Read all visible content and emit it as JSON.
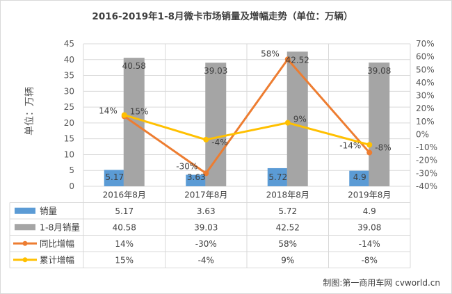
{
  "chart_data": {
    "type": "bar",
    "title": "2016-2019年1-8月微卡市场销量及增幅走势（单位：万辆）",
    "ylabel": "单位：万辆",
    "categories": [
      "2016年8月",
      "2017年8月",
      "2018年8月",
      "2019年8月"
    ],
    "ylim": [
      0,
      45
    ],
    "y_ticks": [
      "0",
      "5",
      "10",
      "15",
      "20",
      "25",
      "30",
      "35",
      "40",
      "45"
    ],
    "y2lim": [
      -40,
      70
    ],
    "y2_ticks": [
      "-40%",
      "-30%",
      "-20%",
      "-10%",
      "0%",
      "10%",
      "20%",
      "30%",
      "40%",
      "50%",
      "60%",
      "70%"
    ],
    "grid": true,
    "series": [
      {
        "name": "销量",
        "kind": "bar",
        "axis": "left",
        "color": "#5b9bd5",
        "values": [
          5.17,
          3.63,
          5.72,
          4.9
        ],
        "labels": [
          "5.17",
          "3.63",
          "5.72",
          "4.9"
        ]
      },
      {
        "name": "1-8月销量",
        "kind": "bar",
        "axis": "left",
        "color": "#a5a5a5",
        "values": [
          40.58,
          39.03,
          42.52,
          39.08
        ],
        "labels": [
          "40.58",
          "39.03",
          "42.52",
          "39.08"
        ]
      },
      {
        "name": "同比增幅",
        "kind": "line",
        "axis": "right",
        "color": "#ed7d31",
        "values": [
          14,
          -30,
          58,
          -14
        ],
        "labels": [
          "14%",
          "-30%",
          "58%",
          "-14%"
        ]
      },
      {
        "name": "累计增幅",
        "kind": "line",
        "axis": "right",
        "color": "#ffc000",
        "values": [
          15,
          -4,
          9,
          -8
        ],
        "labels": [
          "15%",
          "-4%",
          "9%",
          "-8%"
        ]
      }
    ],
    "table": {
      "rows": [
        [
          "5.17",
          "3.63",
          "5.72",
          "4.9"
        ],
        [
          "40.58",
          "39.03",
          "42.52",
          "39.08"
        ],
        [
          "14%",
          "-30%",
          "58%",
          "-14%"
        ],
        [
          "15%",
          "-4%",
          "9%",
          "-8%"
        ]
      ]
    },
    "footer": "制图:第一商用车网 cvworld.cn"
  }
}
